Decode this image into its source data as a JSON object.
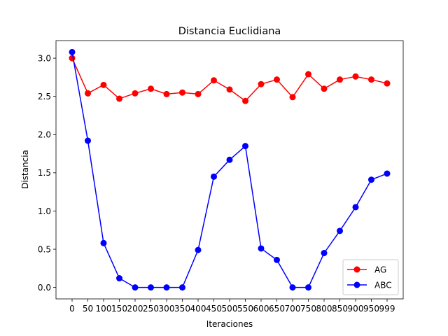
{
  "chart_data": {
    "type": "line",
    "title": "Distancia Euclidiana",
    "xlabel": "Iteraciones",
    "ylabel": "Distancia",
    "categories": [
      "0",
      "50",
      "100",
      "150",
      "200",
      "250",
      "300",
      "350",
      "400",
      "450",
      "500",
      "550",
      "600",
      "650",
      "700",
      "750",
      "800",
      "850",
      "900",
      "950",
      "999"
    ],
    "x": [
      0,
      50,
      100,
      150,
      200,
      250,
      300,
      350,
      400,
      450,
      500,
      550,
      600,
      650,
      700,
      750,
      800,
      850,
      900,
      950,
      999
    ],
    "ylim": [
      -0.15,
      3.23
    ],
    "yticks": [
      "0.0",
      "0.5",
      "1.0",
      "1.5",
      "2.0",
      "2.5",
      "3.0"
    ],
    "ytick_values": [
      0.0,
      0.5,
      1.0,
      1.5,
      2.0,
      2.5,
      3.0
    ],
    "grid": false,
    "legend_position": "lower-right",
    "series": [
      {
        "name": "AG",
        "color": "#ff0000",
        "marker": "circle",
        "values": [
          3.0,
          2.54,
          2.65,
          2.47,
          2.54,
          2.6,
          2.53,
          2.55,
          2.53,
          2.71,
          2.59,
          2.44,
          2.66,
          2.72,
          2.49,
          2.79,
          2.6,
          2.72,
          2.76,
          2.72,
          2.67
        ]
      },
      {
        "name": "ABC",
        "color": "#0000ff",
        "marker": "circle",
        "values": [
          3.08,
          1.92,
          0.58,
          0.12,
          0.0,
          0.0,
          0.0,
          0.0,
          0.49,
          1.45,
          1.67,
          1.85,
          0.51,
          0.36,
          0.0,
          0.0,
          0.45,
          0.74,
          1.05,
          1.41,
          1.49
        ]
      }
    ]
  }
}
